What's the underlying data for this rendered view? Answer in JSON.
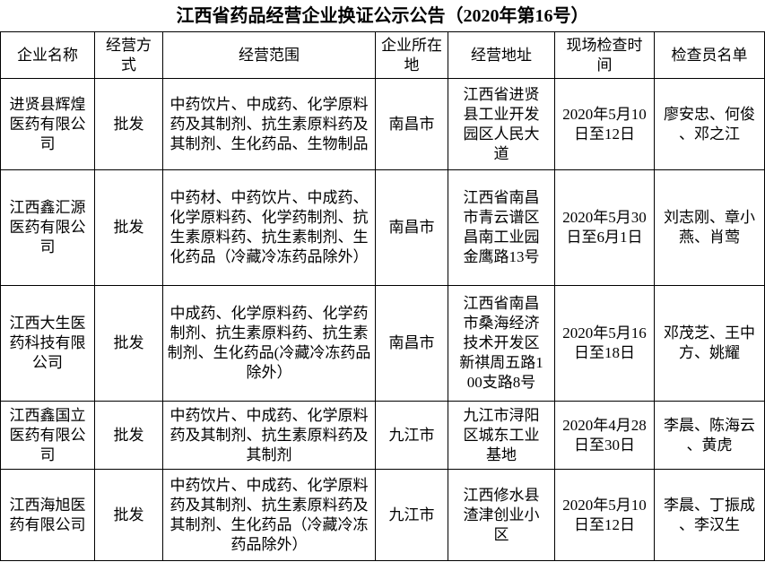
{
  "title": "江西省药品经营企业换证公示公告（2020年第16号）",
  "headers": [
    "企业名称",
    "经营方式",
    "经营范围",
    "企业所在地",
    "经营地址",
    "现场检查时间",
    "检查员名单"
  ],
  "rows": [
    {
      "name": "进贤县辉煌医药有限公司",
      "mode": "批发",
      "scope": "中药饮片、中成药、化学原料药及其制剂、抗生素原料药及其制剂、生化药品、生物制品",
      "city": "南昌市",
      "address": "江西省进贤县工业开发园区人民大道",
      "date": "2020年5月10日至12日",
      "inspectors": "廖安忠、何俊、邓之江"
    },
    {
      "name": "江西鑫汇源医药有限公司",
      "mode": "批发",
      "scope": "中药材、中药饮片、中成药、化学原料药、化学药制剂、抗生素原料药、抗生素制剂、生化药品（冷藏冷冻药品除外）",
      "city": "南昌市",
      "address": "江西省南昌市青云谱区昌南工业园金鹰路13号",
      "date": "2020年5月30日至6月1日",
      "inspectors": "刘志刚、章小燕、肖莺"
    },
    {
      "name": "江西大生医药科技有限公司",
      "mode": "批发",
      "scope": "中成药、化学原料药、化学药制剂、抗生素原料药、抗生素制剂、生化药品(冷藏冷冻药品除外）",
      "city": "南昌市",
      "address": "江西省南昌市桑海经济技术开发区新祺周五路100支路8号",
      "date": "2020年5月16日至18日",
      "inspectors": "邓茂芝、王中方、姚耀"
    },
    {
      "name": "江西鑫国立医药有限公司",
      "mode": "批发",
      "scope": "中药饮片、中成药、化学原料药及其制剂、抗生素原料药及其制剂",
      "city": "九江市",
      "address": "九江市浔阳区城东工业基地",
      "date": "2020年4月28日至30日",
      "inspectors": "李晨、陈海云、黄虎"
    },
    {
      "name": "江西海旭医药有限公司",
      "mode": "批发",
      "scope": "中药饮片、中成药、化学原料药及其制剂、抗生素原料药及其制剂、生化药品（冷藏冷冻药品除外）",
      "city": "九江市",
      "address": "江西修水县渣津创业小区",
      "date": "2020年5月10日至12日",
      "inspectors": "李晨、丁振成、李汉生"
    }
  ]
}
